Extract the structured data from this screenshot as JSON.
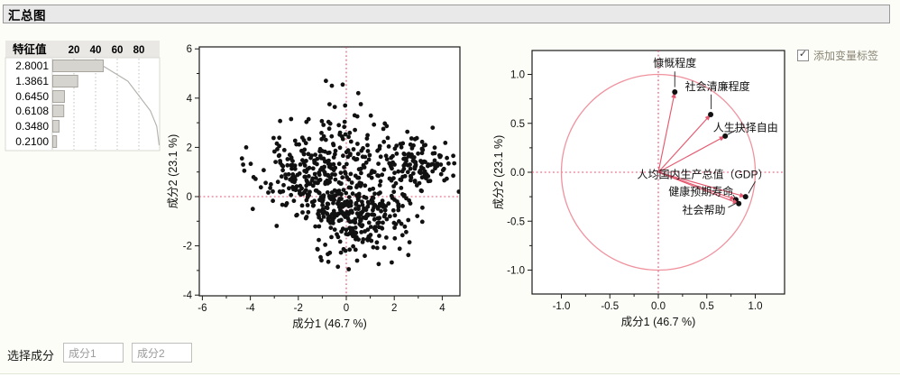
{
  "window_title": "汇总图",
  "colors": {
    "accent_red": "#e8486a",
    "vector_red": "#e55a70",
    "circle_pink": "#f0929e",
    "point_black": "#111111",
    "bar_fill": "#d6d4cf",
    "bar_stroke": "#a7a59e",
    "curve_gray": "#b3b1ac",
    "panel_header_bg": "#e9e8e5",
    "report_bg": "#fbfdf6",
    "checkbox_label_color": "#8c8678"
  },
  "controls": {
    "add_variable_labels": {
      "label": "添加变量标签",
      "checked": true,
      "check_glyph": "✓"
    },
    "select_components": {
      "label": "选择成分",
      "component_1": "成分1",
      "component_2": "成分2"
    }
  },
  "chart_data": [
    {
      "type": "bar",
      "name": "eigenvalues-pareto",
      "title": "特征值",
      "axis_ticks": [
        20,
        40,
        60,
        80
      ],
      "eigenvalues": [
        "2.8001",
        "1.3861",
        "0.6450",
        "0.6108",
        "0.3480",
        "0.2100"
      ],
      "percent_of_total": [
        46.7,
        23.1,
        10.8,
        10.2,
        5.8,
        3.5
      ],
      "cumulative_percent": [
        46.7,
        69.8,
        80.6,
        90.7,
        96.5,
        100
      ]
    },
    {
      "type": "scatter",
      "name": "score-plot",
      "xlabel": "成分1 (46.7 %)",
      "ylabel": "成分2 (23.1 %)",
      "xlim": [
        -6.1,
        4.75
      ],
      "ylim": [
        -4,
        6.1
      ],
      "xticks": [
        -6,
        -4,
        -2,
        0,
        2,
        4
      ],
      "yticks": [
        6,
        4,
        2,
        0,
        -2,
        -4
      ],
      "reference_lines": {
        "x": 0,
        "y": 0
      },
      "point_count_estimate": 740,
      "seed": 11,
      "point_clusters": [
        {
          "n": 210,
          "cx": -1.5,
          "cy": 0.8,
          "sx": 1.0,
          "sy": 0.7
        },
        {
          "n": 300,
          "cx": 0.5,
          "cy": -0.65,
          "sx": 1.05,
          "sy": 0.8
        },
        {
          "n": 130,
          "cx": 2.9,
          "cy": 1.3,
          "sx": 0.78,
          "sy": 0.55
        },
        {
          "n": 70,
          "cx": 0.0,
          "cy": 1.85,
          "sx": 1.25,
          "sy": 0.7
        },
        {
          "n": 16,
          "cx": -0.35,
          "cy": 3.0,
          "sx": 0.9,
          "sy": 0.45
        }
      ],
      "outlier_points": [
        [
          -0.85,
          4.7
        ],
        [
          -0.6,
          4.5
        ],
        [
          -0.15,
          4.55
        ],
        [
          0.5,
          4.2
        ],
        [
          -0.7,
          3.75
        ],
        [
          -0.05,
          3.7
        ],
        [
          0.35,
          3.3
        ],
        [
          -2.3,
          3.15
        ],
        [
          -4.35,
          1.55
        ],
        [
          -4.3,
          1.3
        ],
        [
          -4.25,
          1.05
        ],
        [
          4.5,
          1.35
        ],
        [
          3.6,
          2.8
        ],
        [
          -3.9,
          -0.5
        ],
        [
          -0.35,
          -2.85
        ],
        [
          -0.75,
          -2.65
        ],
        [
          0.1,
          -2.95
        ],
        [
          0.45,
          -2.6
        ]
      ]
    },
    {
      "type": "scatter",
      "name": "loading-plot",
      "xlabel": "成分1 (46.7 %)",
      "ylabel": "成分2 (23.1 %)",
      "xticks": [
        -1,
        -0.5,
        0,
        0.5,
        1
      ],
      "xtick_labels": [
        "-1.0",
        "-0.5",
        "0.0",
        "0.5",
        "1.0"
      ],
      "yticks": [
        1,
        0.5,
        0,
        -0.5,
        -1
      ],
      "ytick_labels": [
        "1.0",
        "0.5",
        "0.0",
        "-0.5",
        "-1.0"
      ],
      "unit_circle": true,
      "reference_lines": {
        "x": 0,
        "y": 0
      },
      "loadings": [
        {
          "label": "慷慨程度",
          "x": 0.17,
          "y": 0.82,
          "label_x": 0.17,
          "label_y": 1.115,
          "anchor": "middle",
          "leader": [
            [
              0.17,
              1.03
            ],
            [
              0.17,
              0.87
            ]
          ]
        },
        {
          "label": "社会清廉程度",
          "x": 0.54,
          "y": 0.59,
          "label_x": 0.61,
          "label_y": 0.875,
          "anchor": "middle",
          "leader": [
            [
              0.545,
              0.795
            ],
            [
              0.545,
              0.645
            ]
          ]
        },
        {
          "label": "人生抉择自由",
          "x": 0.69,
          "y": 0.37,
          "label_x": 0.9,
          "label_y": 0.455,
          "anchor": "middle",
          "leader": [
            [
              0.8,
              0.43
            ],
            [
              0.715,
              0.385
            ]
          ]
        },
        {
          "label": "人均国内生产总值（GDP）",
          "x": 0.9,
          "y": -0.25,
          "label_x": 0.46,
          "label_y": -0.025,
          "anchor": "middle",
          "leader": [
            [
              1.0,
              -0.095
            ],
            [
              0.93,
              -0.215
            ]
          ]
        },
        {
          "label": "健康预期寿命",
          "x": 0.8,
          "y": -0.28,
          "label_x": 0.44,
          "label_y": -0.2,
          "anchor": "middle",
          "leader": [
            [
              0.77,
              -0.23
            ],
            [
              0.795,
              -0.265
            ]
          ]
        },
        {
          "label": "社会帮助",
          "x": 0.83,
          "y": -0.32,
          "label_x": 0.47,
          "label_y": -0.385,
          "anchor": "middle",
          "leader": [
            [
              0.72,
              -0.36
            ],
            [
              0.805,
              -0.315
            ]
          ]
        }
      ]
    }
  ]
}
